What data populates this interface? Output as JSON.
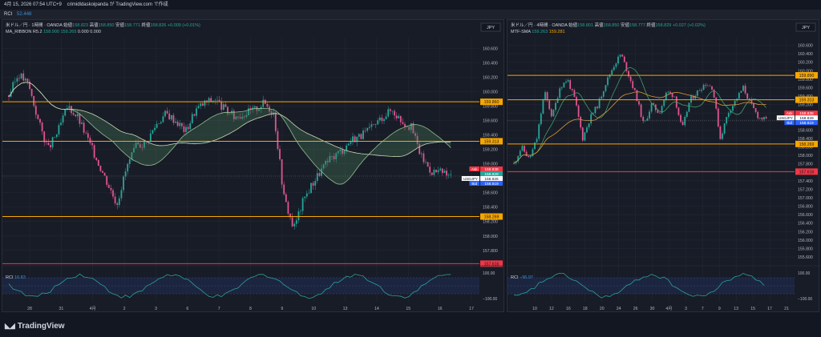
{
  "header": {
    "timestamp": "4月 15, 2026 07:54 UTC+9",
    "publisher": "crimidldaskoipanda が TradingView.com で作成"
  },
  "top_strip": {
    "label": "RCI",
    "value": "52.448"
  },
  "left_chart": {
    "legend_line1": "米ドル／円 · 1時間 · OANDA",
    "ohlc": {
      "o_label": "始値",
      "o": "158.823",
      "h_label": "高値",
      "h": "158.850",
      "l_label": "安値",
      "l": "158.771",
      "c_label": "終値",
      "c": "158.826",
      "chg": "+0.009 (+0.01%)"
    },
    "legend_line2": "MA_RIBBON R5.2",
    "ribbon_vals": [
      "158.900",
      "159.265",
      "0.000",
      "0.000"
    ],
    "rci_label": "RCI",
    "rci_value": "16.83",
    "chart_data": {
      "type": "line",
      "title": "米ドル／円 · 1時間 · OANDA",
      "y_ticks": [
        "160.600",
        "160.400",
        "160.200",
        "160.000",
        "159.800",
        "159.600",
        "159.400",
        "159.200",
        "159.000",
        "158.800",
        "158.600",
        "158.400",
        "158.200",
        "158.000",
        "157.800"
      ],
      "ylim": [
        157.62,
        160.75
      ],
      "x_ticks": [
        "28",
        "31",
        "4月",
        "2",
        "3",
        "6",
        "7",
        "8",
        "9",
        "10",
        "13",
        "14",
        "15",
        "16",
        "17"
      ],
      "close_series": [
        159.95,
        160.25,
        160.1,
        159.6,
        159.2,
        159.45,
        159.8,
        159.65,
        159.35,
        159.05,
        158.75,
        158.45,
        158.95,
        159.25,
        159.3,
        159.55,
        159.7,
        159.6,
        159.45,
        159.75,
        159.85,
        159.9,
        159.75,
        159.65,
        159.7,
        159.75,
        159.85,
        159.7,
        158.55,
        158.1,
        158.5,
        158.75,
        158.95,
        159.1,
        159.2,
        159.35,
        159.4,
        159.5,
        159.65,
        159.75,
        159.6,
        159.5,
        159.1,
        158.9,
        158.88,
        158.83
      ],
      "horizontal_levels": [
        {
          "price": 159.86,
          "label": "159.860",
          "color": "#f7a600"
        },
        {
          "price": 159.313,
          "label": "159.313",
          "color": "#f7a600"
        },
        {
          "price": 158.269,
          "label": "158.269",
          "color": "#f7a600"
        },
        {
          "price": 157.616,
          "label": "157.616",
          "color": "#f23645"
        }
      ],
      "markers": [
        {
          "label": "Ask",
          "price_label": "158.838",
          "color": "#f23645"
        },
        {
          "label": "",
          "price_label": "158.829",
          "color": "#26a69a"
        },
        {
          "label": "USDJPY",
          "price_label": "158.826",
          "sub": "05:06",
          "color": "#ffffff"
        },
        {
          "label": "Bid",
          "price_label": "158.819",
          "color": "#2962ff"
        }
      ],
      "currency": "JPY",
      "rci": {
        "y_ticks": [
          "100.00",
          "−100.00"
        ],
        "value": 16.83
      }
    }
  },
  "right_chart": {
    "legend_line1": "米ドル／円 · 4時間 · OANDA",
    "ohlc": {
      "o_label": "始値",
      "o": "158.801",
      "h_label": "高値",
      "h": "158.850",
      "l_label": "安値",
      "l": "158.777",
      "c_label": "終値",
      "c": "158.829",
      "chg": "+0.027 (+0.02%)"
    },
    "legend_line2": "MTF-SMA",
    "sma_vals": [
      "159.263",
      "159.281"
    ],
    "rci_label": "RCI",
    "rci_value": "−96.97",
    "chart_data": {
      "type": "line",
      "title": "米ドル／円 · 4時間 · OANDA",
      "y_ticks": [
        "160.600",
        "160.400",
        "160.200",
        "160.000",
        "159.800",
        "159.600",
        "159.400",
        "159.200",
        "159.000",
        "158.800",
        "158.600",
        "158.400",
        "158.200",
        "158.000",
        "157.800",
        "157.600",
        "157.400",
        "157.200",
        "157.000",
        "156.800",
        "156.600",
        "156.400",
        "156.200",
        "156.000",
        "155.800",
        "155.600"
      ],
      "ylim": [
        155.45,
        160.78
      ],
      "x_ticks": [
        "10",
        "12",
        "16",
        "18",
        "20",
        "24",
        "26",
        "30",
        "4月",
        "3",
        "7",
        "9",
        "13",
        "15",
        "17",
        "21"
      ],
      "close_series": [
        157.8,
        158.2,
        157.9,
        158.4,
        159.5,
        158.9,
        159.6,
        159.8,
        159.3,
        158.4,
        158.9,
        159.2,
        159.7,
        160.1,
        160.4,
        159.9,
        159.4,
        158.7,
        159.2,
        159.0,
        159.5,
        159.4,
        158.6,
        159.3,
        159.5,
        159.7,
        159.6,
        158.4,
        159.0,
        159.3,
        159.6,
        159.2,
        158.9,
        158.83
      ],
      "horizontal_levels": [
        {
          "price": 159.89,
          "label": "159.890",
          "color": "#f7a600"
        },
        {
          "price": 159.313,
          "label": "159.313",
          "color": "#f7a600"
        },
        {
          "price": 158.269,
          "label": "158.269",
          "color": "#f7a600"
        },
        {
          "price": 157.616,
          "label": "157.616",
          "color": "#f23645"
        }
      ],
      "markers": [
        {
          "label": "Ask",
          "price_label": "158.838",
          "color": "#f23645"
        },
        {
          "label": "USDJPY",
          "price_label": "158.829",
          "sub": "01:35:05",
          "color": "#ffffff"
        },
        {
          "label": "Bid",
          "price_label": "158.819",
          "color": "#2962ff"
        }
      ],
      "currency": "JPY",
      "rci": {
        "y_ticks": [
          "100.00",
          "−100.00"
        ],
        "value": -96.97
      }
    }
  },
  "footer": {
    "brand": "TradingView"
  }
}
